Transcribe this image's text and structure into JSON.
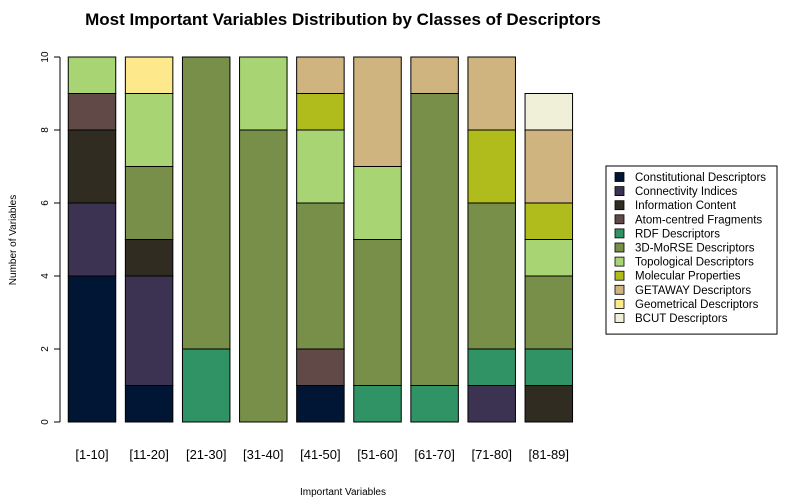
{
  "chart_data": {
    "type": "bar",
    "stacked": true,
    "title": "Most Important Variables Distribution by Classes of Descriptors",
    "xlabel": "Important Variables",
    "ylabel": "Number of Variables",
    "ylim": [
      0,
      10
    ],
    "yticks": [
      0,
      2,
      4,
      6,
      8,
      10
    ],
    "grid": false,
    "legend_position": "right",
    "categories": [
      "[1-10]",
      "[11-20]",
      "[21-30]",
      "[31-40]",
      "[41-50]",
      "[51-60]",
      "[61-70]",
      "[71-80]",
      "[81-89]"
    ],
    "series": [
      {
        "name": "Constitutional Descriptors",
        "color": "#011535",
        "values": [
          4,
          1,
          0,
          0,
          1,
          0,
          0,
          0,
          0
        ]
      },
      {
        "name": "Connectivity Indices",
        "color": "#3c3352",
        "values": [
          2,
          3,
          0,
          0,
          0,
          0,
          0,
          1,
          0
        ]
      },
      {
        "name": "Information Content",
        "color": "#302c22",
        "values": [
          2,
          1,
          0,
          0,
          0,
          0,
          0,
          0,
          1
        ]
      },
      {
        "name": "Atom-centred Fragments",
        "color": "#614948",
        "values": [
          1,
          0,
          0,
          0,
          1,
          0,
          0,
          0,
          0
        ]
      },
      {
        "name": "RDF Descriptors",
        "color": "#2f9365",
        "values": [
          0,
          0,
          2,
          0,
          0,
          1,
          1,
          1,
          1
        ]
      },
      {
        "name": "3D-MoRSE Descriptors",
        "color": "#778f48",
        "values": [
          0,
          2,
          8,
          8,
          4,
          4,
          8,
          4,
          2
        ]
      },
      {
        "name": "Topological Descriptors",
        "color": "#a8d474",
        "values": [
          1,
          2,
          0,
          2,
          2,
          2,
          0,
          0,
          1
        ]
      },
      {
        "name": "Molecular Properties",
        "color": "#b0bc1c",
        "values": [
          0,
          0,
          0,
          0,
          1,
          0,
          0,
          2,
          1
        ]
      },
      {
        "name": "GETAWAY Descriptors",
        "color": "#cfb47f",
        "values": [
          0,
          0,
          0,
          0,
          1,
          3,
          1,
          2,
          2
        ]
      },
      {
        "name": "Geometrical Descriptors",
        "color": "#fde98c",
        "values": [
          0,
          1,
          0,
          0,
          0,
          0,
          0,
          0,
          0
        ]
      },
      {
        "name": "BCUT Descriptors",
        "color": "#f0f0d8",
        "values": [
          0,
          0,
          0,
          0,
          0,
          0,
          0,
          0,
          1
        ]
      }
    ]
  }
}
